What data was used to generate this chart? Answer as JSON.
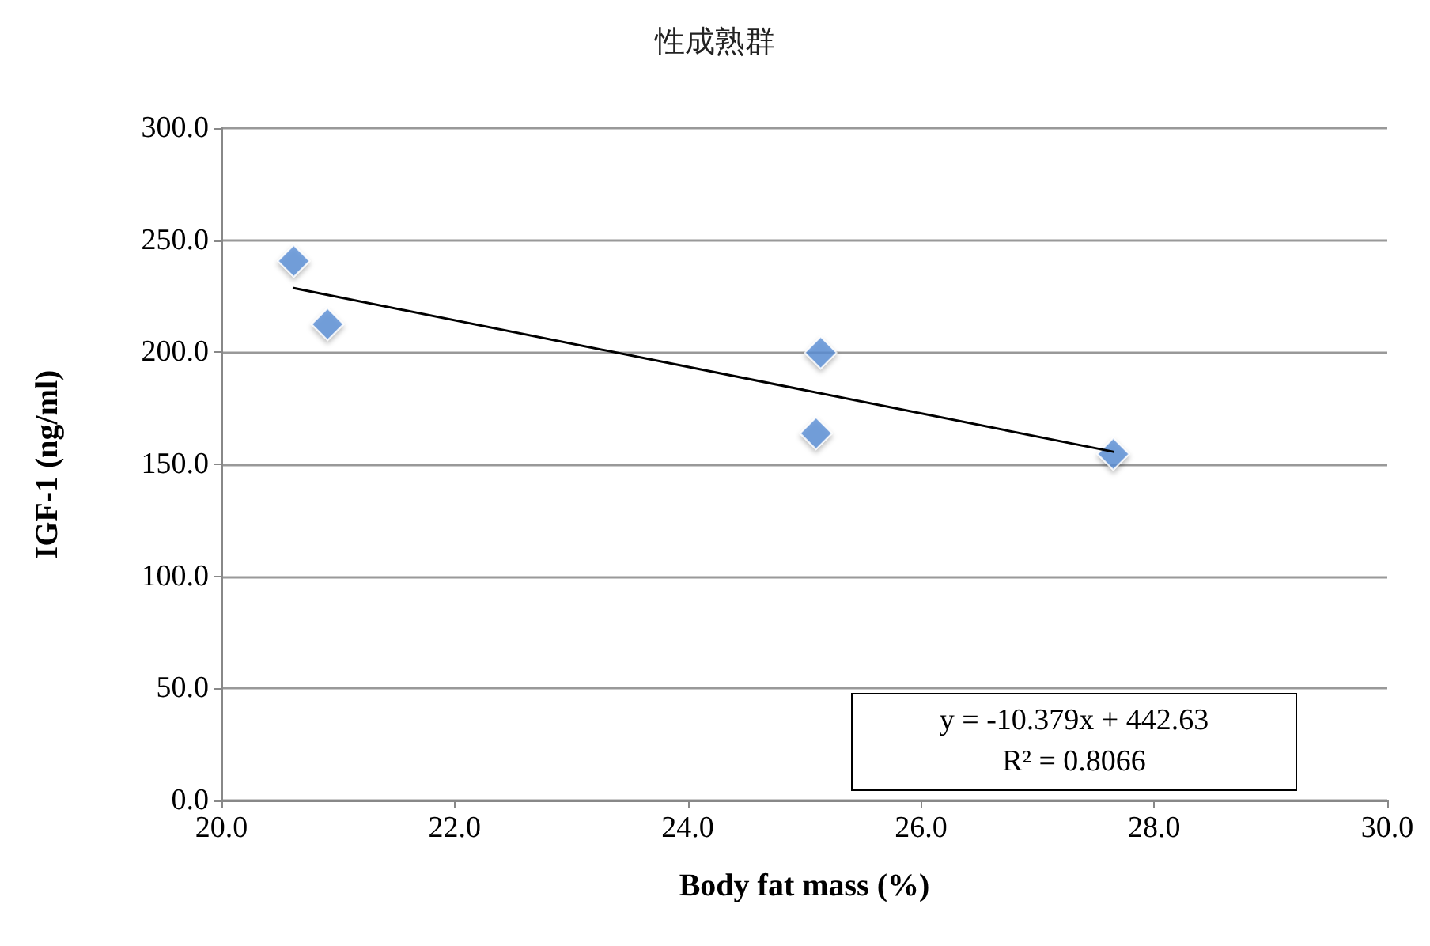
{
  "chart_data": {
    "type": "scatter",
    "title": "性成熟群",
    "xlabel": "Body fat mass (%)",
    "ylabel": "IGF-1 (ng/ml)",
    "xlim": [
      20,
      30
    ],
    "xticks": [
      {
        "value": 20,
        "label": "20.0"
      },
      {
        "value": 22,
        "label": "22.0"
      },
      {
        "value": 24,
        "label": "24.0"
      },
      {
        "value": 26,
        "label": "26.0"
      },
      {
        "value": 28,
        "label": "28.0"
      },
      {
        "value": 30,
        "label": "30.0"
      }
    ],
    "ylim": [
      0,
      300
    ],
    "yticks": [
      {
        "value": 0,
        "label": "0.0"
      },
      {
        "value": 50,
        "label": "50.0"
      },
      {
        "value": 100,
        "label": "100.0"
      },
      {
        "value": 150,
        "label": "150.0"
      },
      {
        "value": 200,
        "label": "200.0"
      },
      {
        "value": 250,
        "label": "250.0"
      },
      {
        "value": 300,
        "label": "300.0"
      }
    ],
    "grid": "y",
    "marker": "diamond",
    "series": [
      {
        "color": "#5b8fd6",
        "x": [
          20.62,
          20.91,
          25.14,
          25.1,
          27.65
        ],
        "values": [
          240.7,
          212.5,
          199.8,
          163.8,
          154.6
        ]
      },
      {
        "type": "line",
        "color": "#000000",
        "marker": "none",
        "line_style": "solid",
        "x": [
          20.62,
          27.65
        ],
        "values": [
          228.6,
          155.6
        ]
      }
    ],
    "annotations": [
      "y = -10.379x + 442.63",
      "R² = 0.8066"
    ]
  }
}
